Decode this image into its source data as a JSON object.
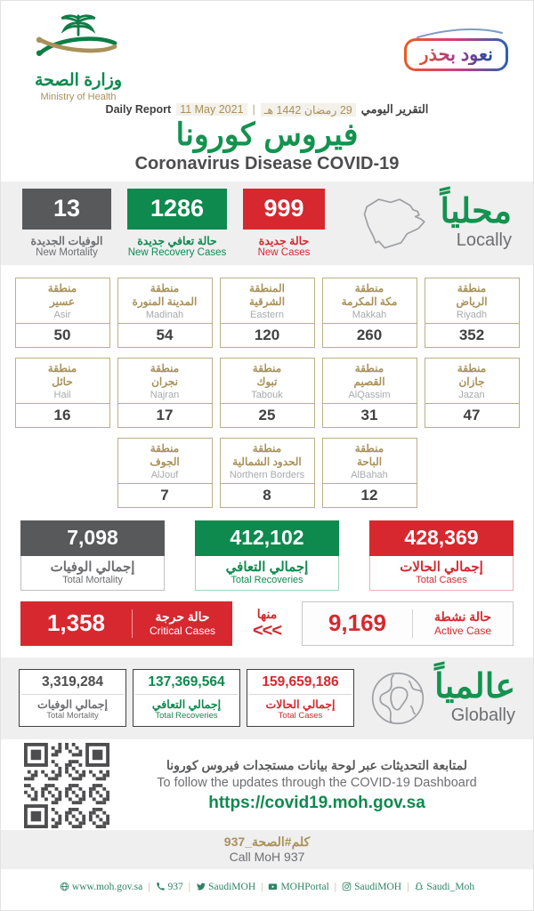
{
  "colors": {
    "green": "#0e8a4f",
    "red": "#d7282f",
    "gray": "#58595b",
    "tan": "#a8915a",
    "band": "#efeff0"
  },
  "header": {
    "logo_ar": "وزارة الصحة",
    "logo_en": "Ministry of Health",
    "badge": "نعود بحذر",
    "report_label_en": "Daily Report",
    "date_gregorian": "11 May 2021",
    "separator": "|",
    "date_hijri": "29 رمضان 1442 هـ",
    "report_label_ar": "التقرير اليومي",
    "title_ar": "فيروس كورونا",
    "title_en": "Coronavirus Disease COVID-19"
  },
  "locally": {
    "title_ar": "محلياً",
    "title_en": "Locally",
    "stats": [
      {
        "value": "13",
        "ar": "الوفيات الجديدة",
        "en": "New Mortality"
      },
      {
        "value": "1286",
        "ar": "حالة تعافي جديدة",
        "en": "New Recovery Cases"
      },
      {
        "value": "999",
        "ar": "حالة جديدة",
        "en": "New Cases"
      }
    ]
  },
  "regions": {
    "rows": [
      [
        {
          "ar": "منطقة\nعسير",
          "en": "Asir",
          "value": "50"
        },
        {
          "ar": "منطقة\nالمدينة المنورة",
          "en": "Madinah",
          "value": "54"
        },
        {
          "ar": "المنطقة\nالشرقية",
          "en": "Eastern",
          "value": "120"
        },
        {
          "ar": "منطقة\nمكة المكرمة",
          "en": "Makkah",
          "value": "260"
        },
        {
          "ar": "منطقة\nالرياض",
          "en": "Riyadh",
          "value": "352"
        }
      ],
      [
        {
          "ar": "منطقة\nحائل",
          "en": "Hail",
          "value": "16"
        },
        {
          "ar": "منطقة\nنجران",
          "en": "Najran",
          "value": "17"
        },
        {
          "ar": "منطقة\nتبوك",
          "en": "Tabouk",
          "value": "25"
        },
        {
          "ar": "منطقة\nالقصيم",
          "en": "AlQassim",
          "value": "31"
        },
        {
          "ar": "منطقة\nجازان",
          "en": "Jazan",
          "value": "47"
        }
      ],
      [
        {
          "ar": "منطقة\nالجوف",
          "en": "AlJouf",
          "value": "7"
        },
        {
          "ar": "منطقة\nالحدود الشمالية",
          "en": "Northern Borders",
          "value": "8"
        },
        {
          "ar": "منطقة\nالباحة",
          "en": "AlBahah",
          "value": "12"
        }
      ]
    ]
  },
  "totals": [
    {
      "value": "7,098",
      "ar": "إجمالي الوفيات",
      "en": "Total Mortality"
    },
    {
      "value": "412,102",
      "ar": "إجمالي التعافي",
      "en": "Total Recoveries"
    },
    {
      "value": "428,369",
      "ar": "إجمالي الحالات",
      "en": "Total Cases"
    }
  ],
  "critical": {
    "value": "1,358",
    "ar": "حالة حرجة",
    "en": "Critical Cases"
  },
  "minha": {
    "label": "منها",
    "arrows": "<<<"
  },
  "active": {
    "value": "9,169",
    "ar": "حالة نشطة",
    "en": "Active Case"
  },
  "globally": {
    "title_ar": "عالمياً",
    "title_en": "Globally",
    "stats": [
      {
        "value": "3,319,284",
        "ar": "إجمالي الوفيات",
        "en": "Total Mortality"
      },
      {
        "value": "137,369,564",
        "ar": "إجمالي التعافي",
        "en": "Total Recoveries"
      },
      {
        "value": "159,659,186",
        "ar": "إجمالي الحالات",
        "en": "Total Cases"
      }
    ]
  },
  "dashboard": {
    "ar": "لمتابعة التحديثات عبر لوحة بيانات مستجدات فيروس كورونا",
    "en": "To follow the updates through the COVID-19 Dashboard",
    "url": "https://covid19.moh.gov.sa"
  },
  "call": {
    "ar": "كلم#الصحة_937",
    "en": "Call MoH 937"
  },
  "footer": {
    "separator": "|",
    "items": [
      {
        "icon": "globe-icon",
        "label": "www.moh.gov.sa"
      },
      {
        "icon": "phone-icon",
        "label": "937"
      },
      {
        "icon": "twitter-icon",
        "label": "SaudiMOH"
      },
      {
        "icon": "youtube-icon",
        "label": "MOHPortal"
      },
      {
        "icon": "instagram-icon",
        "label": "SaudiMOH"
      },
      {
        "icon": "snapchat-icon",
        "label": "Saudi_Moh"
      }
    ]
  }
}
